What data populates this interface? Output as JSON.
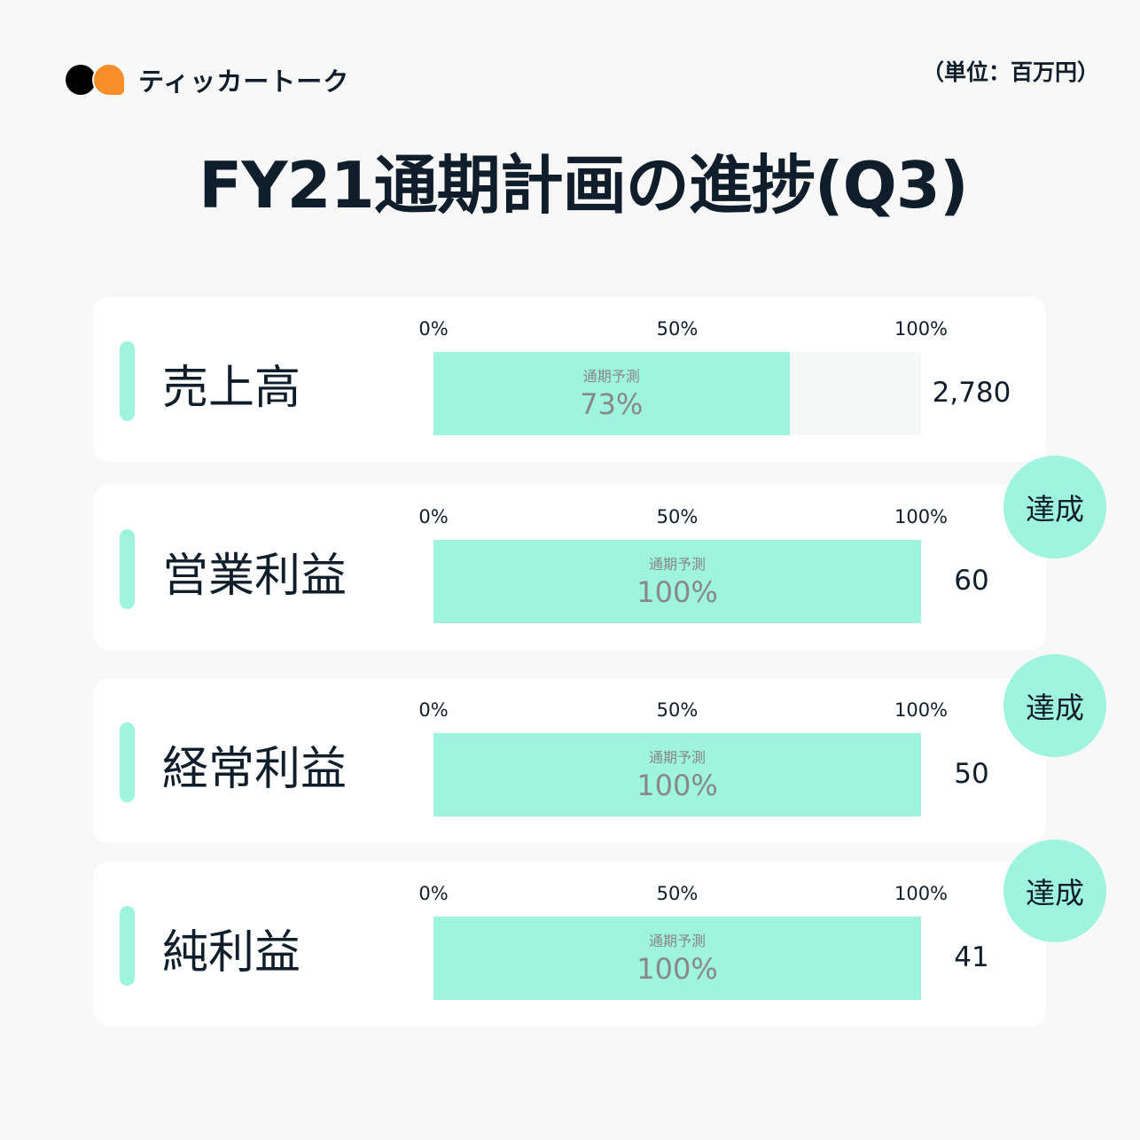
{
  "brand": {
    "name": "ティッカートーク",
    "colors": {
      "dark": "#000000",
      "orange": "#f88e2a"
    }
  },
  "unit": "（単位：百万円）",
  "title": "FY21通期計画の進捗(Q3)",
  "colors": {
    "accent": "#9ef4dc",
    "track": "#f6f7f7",
    "card": "#ffffff",
    "background": "#f8f8f8"
  },
  "chart_data": {
    "type": "bar",
    "orientation": "horizontal",
    "title": "FY21通期計画の進捗(Q3)",
    "unit": "（単位：百万円）",
    "ticks": [
      "0%",
      "50%",
      "100%"
    ],
    "xlim": [
      0,
      100
    ],
    "bar_caption": "通期予測",
    "rows": [
      {
        "label": "売上高",
        "progress": 73,
        "progress_label": "73%",
        "value": "2,780",
        "badge": ""
      },
      {
        "label": "営業利益",
        "progress": 100,
        "progress_label": "100%",
        "value": "60",
        "badge": "達成"
      },
      {
        "label": "経常利益",
        "progress": 100,
        "progress_label": "100%",
        "value": "50",
        "badge": "達成"
      },
      {
        "label": "純利益",
        "progress": 100,
        "progress_label": "100%",
        "value": "41",
        "badge": "達成"
      }
    ]
  }
}
